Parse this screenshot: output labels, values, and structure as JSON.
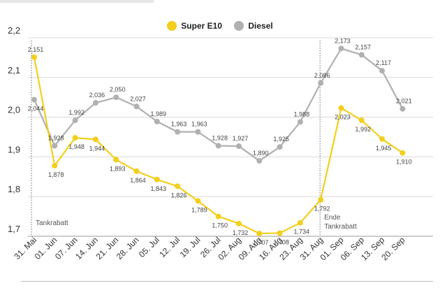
{
  "legend": {
    "series1": "Super E10",
    "series2": "Diesel"
  },
  "colors": {
    "super_e10": "#f2cf1d",
    "diesel": "#b0b0b0",
    "grid": "#d9d9d9",
    "annotation_line": "#6b6b6b",
    "text": "#333333"
  },
  "chart_data": {
    "type": "line",
    "categories": [
      "31. Mai",
      "01. Jun",
      "07. Jun",
      "14. Jun",
      "21. Jun",
      "28. Jun",
      "05. Jul",
      "12. Jul",
      "19. Jul",
      "26. Jul",
      "02. Aug",
      "09. Aug",
      "16. Aug",
      "23. Aug",
      "31. Aug",
      "01. Sep",
      "06. Sep",
      "13. Sep",
      "20. Sep"
    ],
    "series": [
      {
        "name": "Super E10",
        "values": [
          2.151,
          1.878,
          1.948,
          1.944,
          1.893,
          1.864,
          1.843,
          1.826,
          1.789,
          1.75,
          1.732,
          1.707,
          1.708,
          1.734,
          1.792,
          2.023,
          1.992,
          1.945,
          1.91
        ],
        "labels": [
          "2,151",
          "1,878",
          "1,948",
          "1,944",
          "1,893",
          "1,864",
          "1,843",
          "1,826",
          "1,789",
          "1,750",
          "1,732",
          "1,707",
          "1,708",
          "1,734",
          "1,792",
          "2,023",
          "1,992",
          "1,945",
          "1,910"
        ]
      },
      {
        "name": "Diesel",
        "values": [
          2.044,
          1.928,
          1.992,
          2.036,
          2.05,
          2.027,
          1.989,
          1.963,
          1.963,
          1.928,
          1.927,
          1.89,
          1.925,
          1.988,
          2.086,
          2.173,
          2.157,
          2.117,
          2.021
        ],
        "labels": [
          "2,044",
          "1,928",
          "1,992",
          "2,036",
          "2,050",
          "2,027",
          "1,989",
          "1,963",
          "1,963",
          "1,928",
          "1,927",
          "1,890",
          "1,925",
          "1,988",
          "2,086",
          "2,173",
          "2,157",
          "2,117",
          "2,021"
        ]
      }
    ],
    "ylim": [
      1.7,
      2.2
    ],
    "yticks": [
      1.7,
      1.8,
      1.9,
      2.0,
      2.1,
      2.2
    ],
    "ytick_labels": [
      "1,7",
      "1,8",
      "1,9",
      "2,0",
      "2,1",
      "2,2"
    ],
    "grid": true,
    "legend_position": "top-center",
    "annotations": [
      {
        "category": "31. Mai",
        "lines": [
          "Tankrabatt"
        ]
      },
      {
        "category": "31. Aug",
        "lines": [
          "Ende",
          "Tankrabatt"
        ]
      }
    ]
  }
}
